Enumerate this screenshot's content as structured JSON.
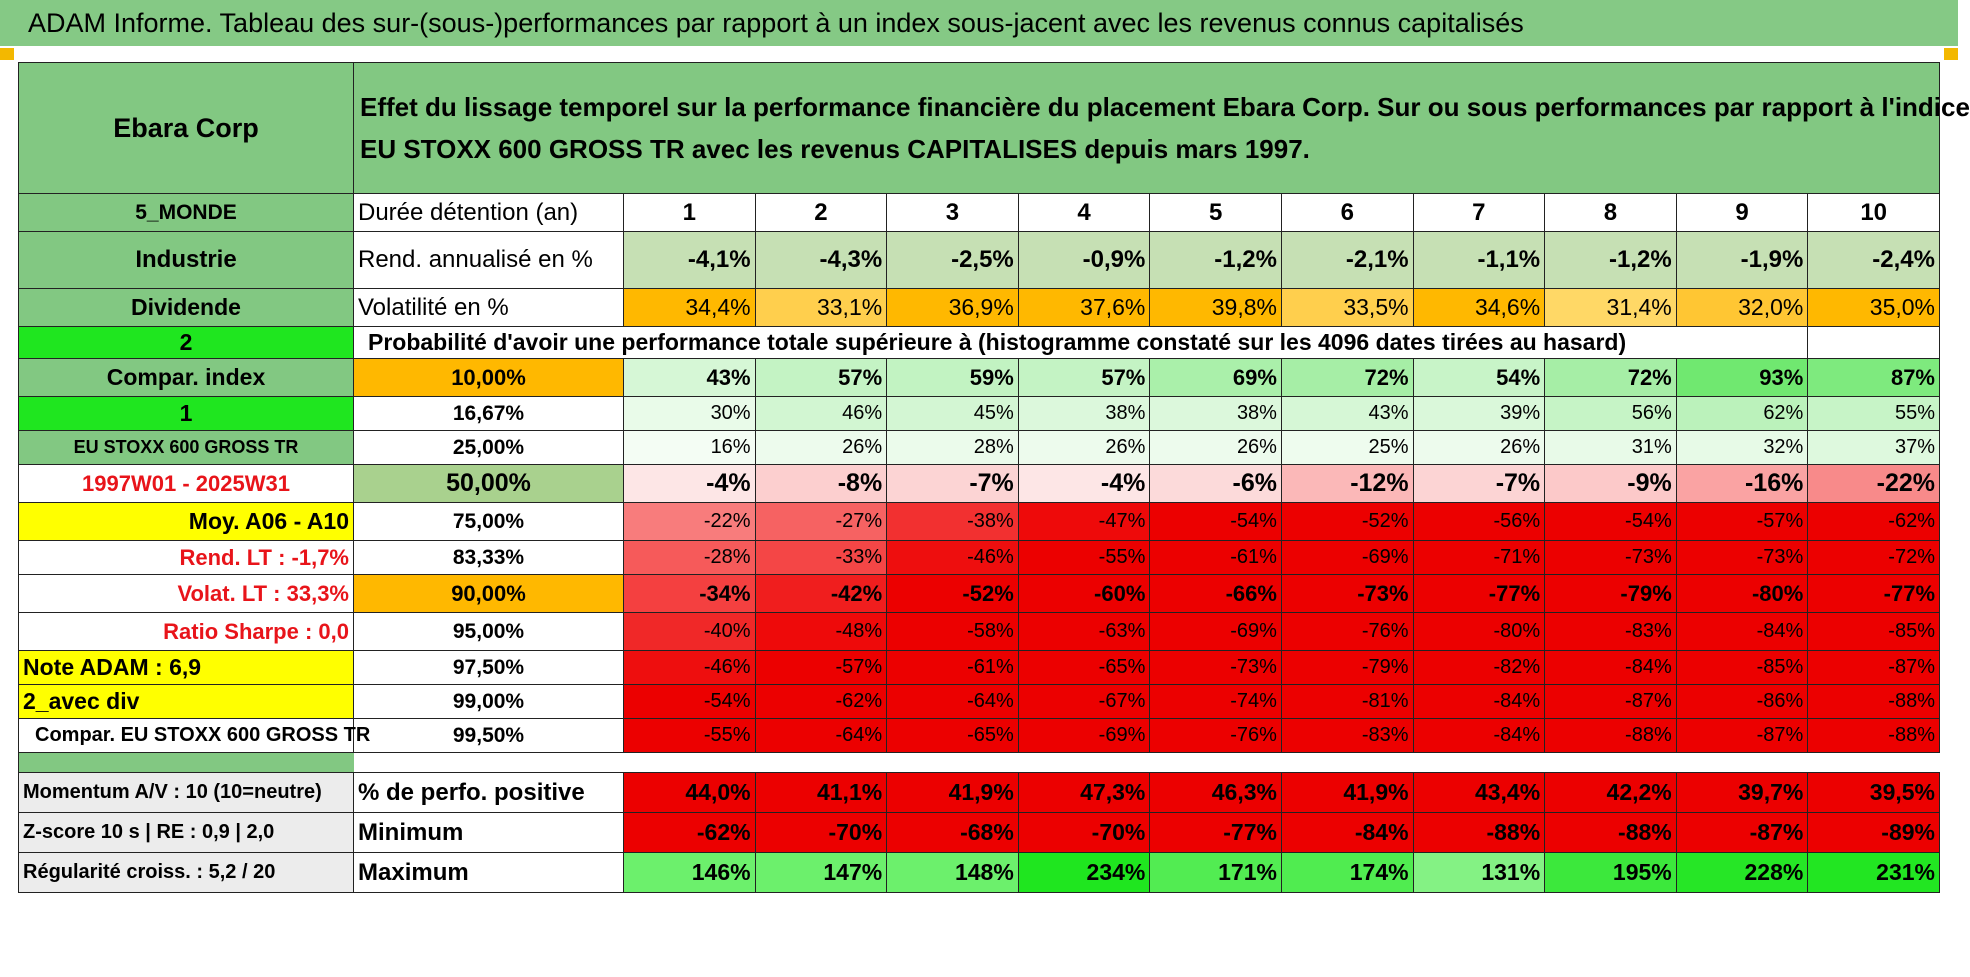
{
  "title": "ADAM Informe. Tableau des sur-(sous-)performances par rapport à un index sous-jacent avec les revenus connus capitalisés",
  "header": {
    "company": "Ebara Corp",
    "description_line1": "Effet du lissage temporel sur la performance financière du placement Ebara Corp. Sur ou sous performances par rapport à l'indice",
    "description_line2": "EU STOXX 600 GROSS TR avec les revenus CAPITALISES depuis mars 1997."
  },
  "left": {
    "region": "5_MONDE",
    "sector": "Industrie",
    "dividend": "Dividende",
    "selector1": "2",
    "compar_index": "Compar. index",
    "selector2": "1",
    "index_name": "EU STOXX 600 GROSS TR",
    "period": "1997W01 - 2025W31",
    "moy": "Moy. A06 - A10",
    "rend_lt": "Rend. LT :   -1,7%",
    "volat_lt": "Volat. LT :   33,3%",
    "sharpe": "Ratio Sharpe :    0,0",
    "note": "Note ADAM : 6,9",
    "avec_div": "2_avec div",
    "compar_full": "Compar. EU STOXX 600 GROSS TR",
    "momentum": "Momentum A/V : 10 (10=neutre)",
    "zscore": "Z-score 10 s | RE : 0,9 | 2,0",
    "regularite": "Régularité croiss. : 5,2 / 20"
  },
  "labels": {
    "duree": "Durée détention (an)",
    "rend": "Rend. annualisé en %",
    "vol": "Volatilité en %",
    "proba": "Probabilité d'avoir une performance totale supérieure à (histogramme constaté sur les 4096 dates tirées au hasard)",
    "pos": "% de perfo. positive",
    "min": "Minimum",
    "max": "Maximum"
  },
  "years": [
    "1",
    "2",
    "3",
    "4",
    "5",
    "6",
    "7",
    "8",
    "9",
    "10"
  ],
  "rend": [
    "-4,1%",
    "-4,3%",
    "-2,5%",
    "-0,9%",
    "-1,2%",
    "-2,1%",
    "-1,1%",
    "-1,2%",
    "-1,9%",
    "-2,4%"
  ],
  "vol": [
    "34,4%",
    "33,1%",
    "36,9%",
    "37,6%",
    "39,8%",
    "33,5%",
    "34,6%",
    "31,4%",
    "32,0%",
    "35,0%"
  ],
  "vol_colors": [
    "#ffb800",
    "#ffcf4d",
    "#ffb800",
    "#ffb800",
    "#ffb800",
    "#ffcf4d",
    "#ffb800",
    "#ffd866",
    "#ffc633",
    "#ffb800"
  ],
  "rend_color": "#c6e0b4",
  "proba_rows": [
    {
      "pct": "10,00%",
      "values": [
        "43%",
        "57%",
        "59%",
        "57%",
        "69%",
        "72%",
        "54%",
        "72%",
        "93%",
        "87%"
      ],
      "colors": [
        "#d6f7d6",
        "#c4f3c4",
        "#c2f3c2",
        "#c4f3c4",
        "#aaf0aa",
        "#a6eea6",
        "#c8f4c8",
        "#a6eea6",
        "#70e870",
        "#7eea7e"
      ]
    },
    {
      "pct": "16,67%",
      "values": [
        "30%",
        "46%",
        "45%",
        "38%",
        "38%",
        "43%",
        "39%",
        "56%",
        "62%",
        "55%"
      ],
      "colors": [
        "#e9fbe9",
        "#d2f6d2",
        "#d3f6d3",
        "#dcf8dc",
        "#dcf8dc",
        "#d6f7d6",
        "#daf8da",
        "#c6f4c6",
        "#bbf2bb",
        "#c7f4c7"
      ]
    },
    {
      "pct": "25,00%",
      "values": [
        "16%",
        "26%",
        "28%",
        "26%",
        "26%",
        "25%",
        "26%",
        "31%",
        "32%",
        "37%"
      ],
      "colors": [
        "#f4fdf4",
        "#edfbed",
        "#ebfbeb",
        "#edfbed",
        "#edfbed",
        "#eefcee",
        "#edfbed",
        "#e8fae8",
        "#e7fae7",
        "#def9de"
      ]
    },
    {
      "pct": "50,00%",
      "values": [
        "-4%",
        "-8%",
        "-7%",
        "-4%",
        "-6%",
        "-12%",
        "-7%",
        "-9%",
        "-16%",
        "-22%"
      ],
      "colors": [
        "#fde6e6",
        "#fccfcf",
        "#fcd4d4",
        "#fde6e6",
        "#fcdada",
        "#fbb8b8",
        "#fcd4d4",
        "#fcc9c9",
        "#faa3a3",
        "#f88a8a"
      ]
    },
    {
      "pct": "75,00%",
      "values": [
        "-22%",
        "-27%",
        "-38%",
        "-47%",
        "-54%",
        "-52%",
        "-56%",
        "-54%",
        "-57%",
        "-62%"
      ],
      "colors": [
        "#f87c7c",
        "#f66262",
        "#f23030",
        "#ee0a0a",
        "#ec0000",
        "#ec0000",
        "#ec0000",
        "#ec0000",
        "#ec0000",
        "#ec0000"
      ]
    },
    {
      "pct": "83,33%",
      "values": [
        "-28%",
        "-33%",
        "-46%",
        "-55%",
        "-61%",
        "-69%",
        "-71%",
        "-73%",
        "-73%",
        "-72%"
      ],
      "colors": [
        "#f65a5a",
        "#f44646",
        "#ee0e0e",
        "#ec0000",
        "#ec0000",
        "#ec0000",
        "#ec0000",
        "#ec0000",
        "#ec0000",
        "#ec0000"
      ]
    },
    {
      "pct": "90,00%",
      "values": [
        "-34%",
        "-42%",
        "-52%",
        "-60%",
        "-66%",
        "-73%",
        "-77%",
        "-79%",
        "-80%",
        "-77%"
      ],
      "colors": [
        "#f44040",
        "#f01e1e",
        "#ec0000",
        "#ec0000",
        "#ec0000",
        "#ec0000",
        "#ec0000",
        "#ec0000",
        "#ec0000",
        "#ec0000"
      ]
    },
    {
      "pct": "95,00%",
      "values": [
        "-40%",
        "-48%",
        "-58%",
        "-63%",
        "-69%",
        "-76%",
        "-80%",
        "-83%",
        "-84%",
        "-85%"
      ],
      "colors": [
        "#f02828",
        "#ee0a0a",
        "#ec0000",
        "#ec0000",
        "#ec0000",
        "#ec0000",
        "#ec0000",
        "#ec0000",
        "#ec0000",
        "#ec0000"
      ]
    },
    {
      "pct": "97,50%",
      "values": [
        "-46%",
        "-57%",
        "-61%",
        "-65%",
        "-73%",
        "-79%",
        "-82%",
        "-84%",
        "-85%",
        "-87%"
      ],
      "colors": [
        "#ee0e0e",
        "#ec0000",
        "#ec0000",
        "#ec0000",
        "#ec0000",
        "#ec0000",
        "#ec0000",
        "#ec0000",
        "#ec0000",
        "#ec0000"
      ]
    },
    {
      "pct": "99,00%",
      "values": [
        "-54%",
        "-62%",
        "-64%",
        "-67%",
        "-74%",
        "-81%",
        "-84%",
        "-87%",
        "-86%",
        "-88%"
      ],
      "colors": [
        "#ec0000",
        "#ec0000",
        "#ec0000",
        "#ec0000",
        "#ec0000",
        "#ec0000",
        "#ec0000",
        "#ec0000",
        "#ec0000",
        "#ec0000"
      ]
    },
    {
      "pct": "99,50%",
      "values": [
        "-55%",
        "-64%",
        "-65%",
        "-69%",
        "-76%",
        "-83%",
        "-84%",
        "-88%",
        "-87%",
        "-88%"
      ],
      "colors": [
        "#ec0000",
        "#ec0000",
        "#ec0000",
        "#ec0000",
        "#ec0000",
        "#ec0000",
        "#ec0000",
        "#ec0000",
        "#ec0000",
        "#ec0000"
      ]
    }
  ],
  "pos": {
    "values": [
      "44,0%",
      "41,1%",
      "41,9%",
      "47,3%",
      "46,3%",
      "41,9%",
      "43,4%",
      "42,2%",
      "39,7%",
      "39,5%"
    ],
    "color": "#ec0000"
  },
  "min": {
    "values": [
      "-62%",
      "-70%",
      "-68%",
      "-70%",
      "-77%",
      "-84%",
      "-88%",
      "-88%",
      "-87%",
      "-89%"
    ],
    "color": "#ec0000"
  },
  "max": {
    "values": [
      "146%",
      "147%",
      "148%",
      "234%",
      "171%",
      "174%",
      "131%",
      "195%",
      "228%",
      "231%"
    ],
    "colors": [
      "#6cf06c",
      "#6cf06c",
      "#6cf06c",
      "#1fe61f",
      "#52ec52",
      "#50ec50",
      "#84f284",
      "#3ce83c",
      "#26e626",
      "#22e622"
    ]
  }
}
